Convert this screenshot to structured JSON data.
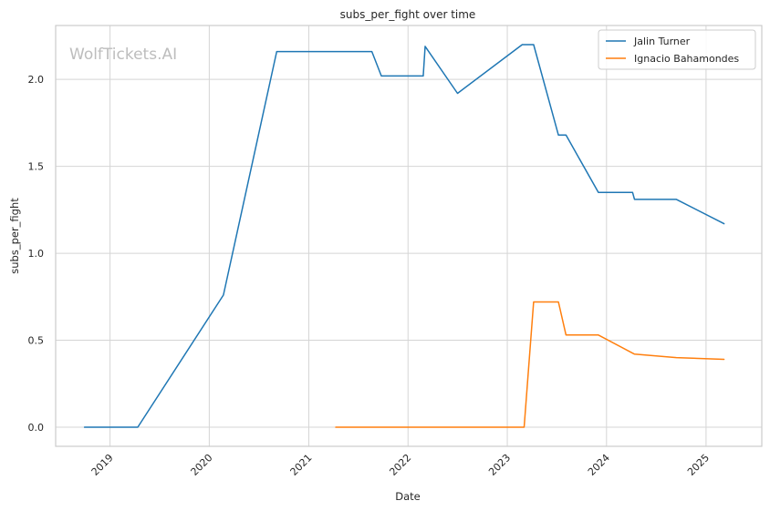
{
  "chart_data": {
    "type": "line",
    "title": "subs_per_fight over time",
    "xlabel": "Date",
    "ylabel": "subs_per_fight",
    "xlim": [
      "2018-06-15",
      "2025-07-25"
    ],
    "ylim": [
      -0.11,
      2.31
    ],
    "x_ticks": [
      "2019-01-01",
      "2020-01-01",
      "2021-01-01",
      "2022-01-01",
      "2023-01-01",
      "2024-01-01",
      "2025-01-01"
    ],
    "x_tick_labels": [
      "2019",
      "2020",
      "2021",
      "2022",
      "2023",
      "2024",
      "2025"
    ],
    "y_ticks": [
      0.0,
      0.5,
      1.0,
      1.5,
      2.0
    ],
    "y_tick_labels": [
      "0.0",
      "0.5",
      "1.0",
      "1.5",
      "2.0"
    ],
    "grid": true,
    "legend_position": "top-right",
    "watermark": "WolfTickets.AI",
    "series": [
      {
        "name": "Jalin Turner",
        "color": "#1f77b4",
        "points": [
          [
            "2018-09-29",
            0.0
          ],
          [
            "2019-04-13",
            0.0
          ],
          [
            "2020-02-22",
            0.76
          ],
          [
            "2020-09-05",
            2.16
          ],
          [
            "2021-08-21",
            2.16
          ],
          [
            "2021-09-25",
            2.02
          ],
          [
            "2022-02-26",
            2.02
          ],
          [
            "2022-03-05",
            2.19
          ],
          [
            "2022-07-02",
            1.92
          ],
          [
            "2023-02-25",
            2.2
          ],
          [
            "2023-04-08",
            2.2
          ],
          [
            "2023-07-08",
            1.68
          ],
          [
            "2023-08-05",
            1.68
          ],
          [
            "2023-12-02",
            1.35
          ],
          [
            "2024-04-06",
            1.35
          ],
          [
            "2024-04-13",
            1.31
          ],
          [
            "2024-09-14",
            1.31
          ],
          [
            "2025-03-08",
            1.17
          ]
        ]
      },
      {
        "name": "Ignacio Bahamondes",
        "color": "#ff7f0e",
        "points": [
          [
            "2021-04-10",
            0.0
          ],
          [
            "2023-03-04",
            0.0
          ],
          [
            "2023-04-08",
            0.72
          ],
          [
            "2023-07-08",
            0.72
          ],
          [
            "2023-08-05",
            0.53
          ],
          [
            "2023-12-02",
            0.53
          ],
          [
            "2024-04-13",
            0.42
          ],
          [
            "2024-09-14",
            0.4
          ],
          [
            "2025-03-08",
            0.39
          ]
        ]
      }
    ]
  }
}
